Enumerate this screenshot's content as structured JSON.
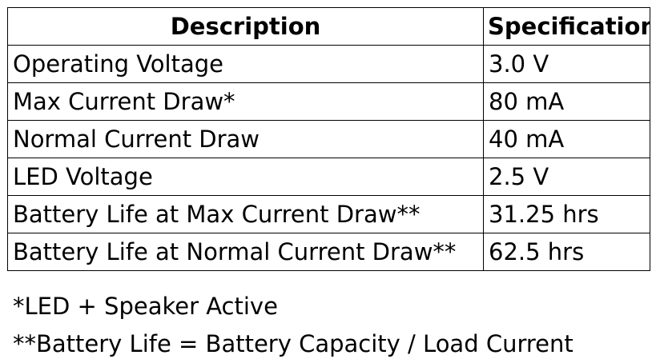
{
  "table": {
    "headers": [
      "Description",
      "Specification"
    ],
    "rows": [
      [
        "Operating Voltage",
        "3.0 V"
      ],
      [
        "Max Current Draw*",
        "80 mA"
      ],
      [
        "Normal Current Draw",
        "40 mA"
      ],
      [
        "LED Voltage",
        "2.5 V"
      ],
      [
        "Battery Life at Max Current Draw**",
        "31.25 hrs"
      ],
      [
        "Battery Life at Normal Current Draw**",
        "62.5 hrs"
      ]
    ]
  },
  "footnotes": [
    "*LED + Speaker Active",
    "**Battery Life = Battery Capacity / Load Current"
  ]
}
